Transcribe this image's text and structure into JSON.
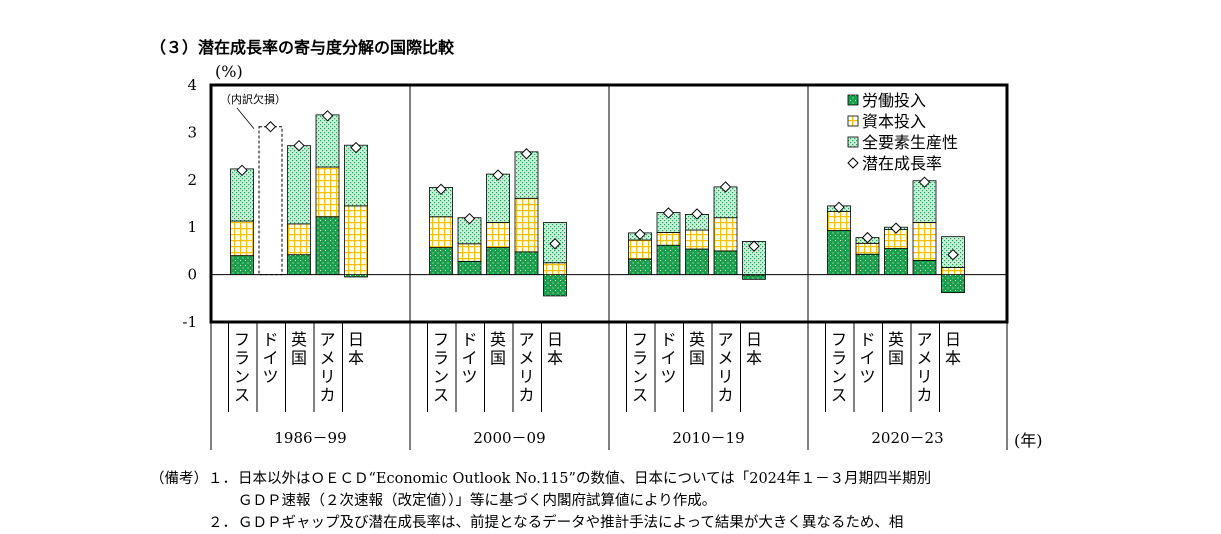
{
  "title": "（３）潜在成長率の寄与度分解の国際比較",
  "unit_label": "(%)",
  "year_unit": "(年)",
  "colors": {
    "labor": "#1b9e4b",
    "capital": "#ffd700",
    "tfp": "#9fe6bf"
  },
  "chart_data": {
    "type": "bar",
    "stacked": true,
    "ylim": [
      -1,
      4
    ],
    "yticks": [
      "-1",
      "0",
      "1",
      "2",
      "3",
      "4"
    ],
    "periods": [
      "1986－99",
      "2000－09",
      "2010－19",
      "2020－23"
    ],
    "countries": [
      "フランス",
      "ドイツ",
      "英国",
      "アメリカ",
      "日本"
    ],
    "series": [
      {
        "name": "労働投入",
        "values": [
          [
            0.4,
            null,
            0.42,
            1.22,
            -0.05
          ],
          [
            0.57,
            0.28,
            0.57,
            0.48,
            -0.45
          ],
          [
            0.33,
            0.62,
            0.54,
            0.5,
            -0.1
          ],
          [
            0.93,
            0.43,
            0.55,
            0.3,
            -0.38
          ]
        ]
      },
      {
        "name": "資本投入",
        "values": [
          [
            0.73,
            null,
            0.65,
            1.05,
            1.45
          ],
          [
            0.65,
            0.37,
            0.53,
            1.13,
            0.25
          ],
          [
            0.4,
            0.27,
            0.4,
            0.7,
            0.0
          ],
          [
            0.4,
            0.23,
            0.4,
            0.8,
            0.15
          ]
        ]
      },
      {
        "name": "全要素生産性",
        "values": [
          [
            1.1,
            null,
            1.65,
            1.1,
            1.28
          ],
          [
            0.62,
            0.55,
            1.02,
            0.98,
            0.85
          ],
          [
            0.15,
            0.42,
            0.33,
            0.65,
            0.7
          ],
          [
            0.12,
            0.12,
            0.05,
            0.88,
            0.65
          ]
        ]
      },
      {
        "name": "潜在成長率",
        "marker": "diamond",
        "values": [
          [
            2.2,
            3.12,
            2.72,
            3.35,
            2.68
          ],
          [
            1.8,
            1.18,
            2.1,
            2.55,
            0.65
          ],
          [
            0.85,
            1.3,
            1.28,
            1.85,
            0.6
          ],
          [
            1.42,
            0.78,
            0.98,
            1.95,
            0.42
          ]
        ]
      }
    ],
    "annotation": "（内訳欠損）",
    "legend_position": "top-right"
  },
  "notes": {
    "label": "（備考）",
    "items": [
      {
        "num": "１．",
        "lines": [
          "日本以外はＯＥＣＤ“Economic Outlook No.115”の数値、日本については「2024年１－３月期四半期別",
          "ＧＤＰ速報（２次速報（改定値））」等に基づく内閣府試算値により作成。"
        ]
      },
      {
        "num": "２．",
        "lines": [
          "ＧＤＰギャップ及び潜在成長率は、前提となるデータや推計手法によって結果が大きく異なるため、相"
        ]
      }
    ]
  }
}
